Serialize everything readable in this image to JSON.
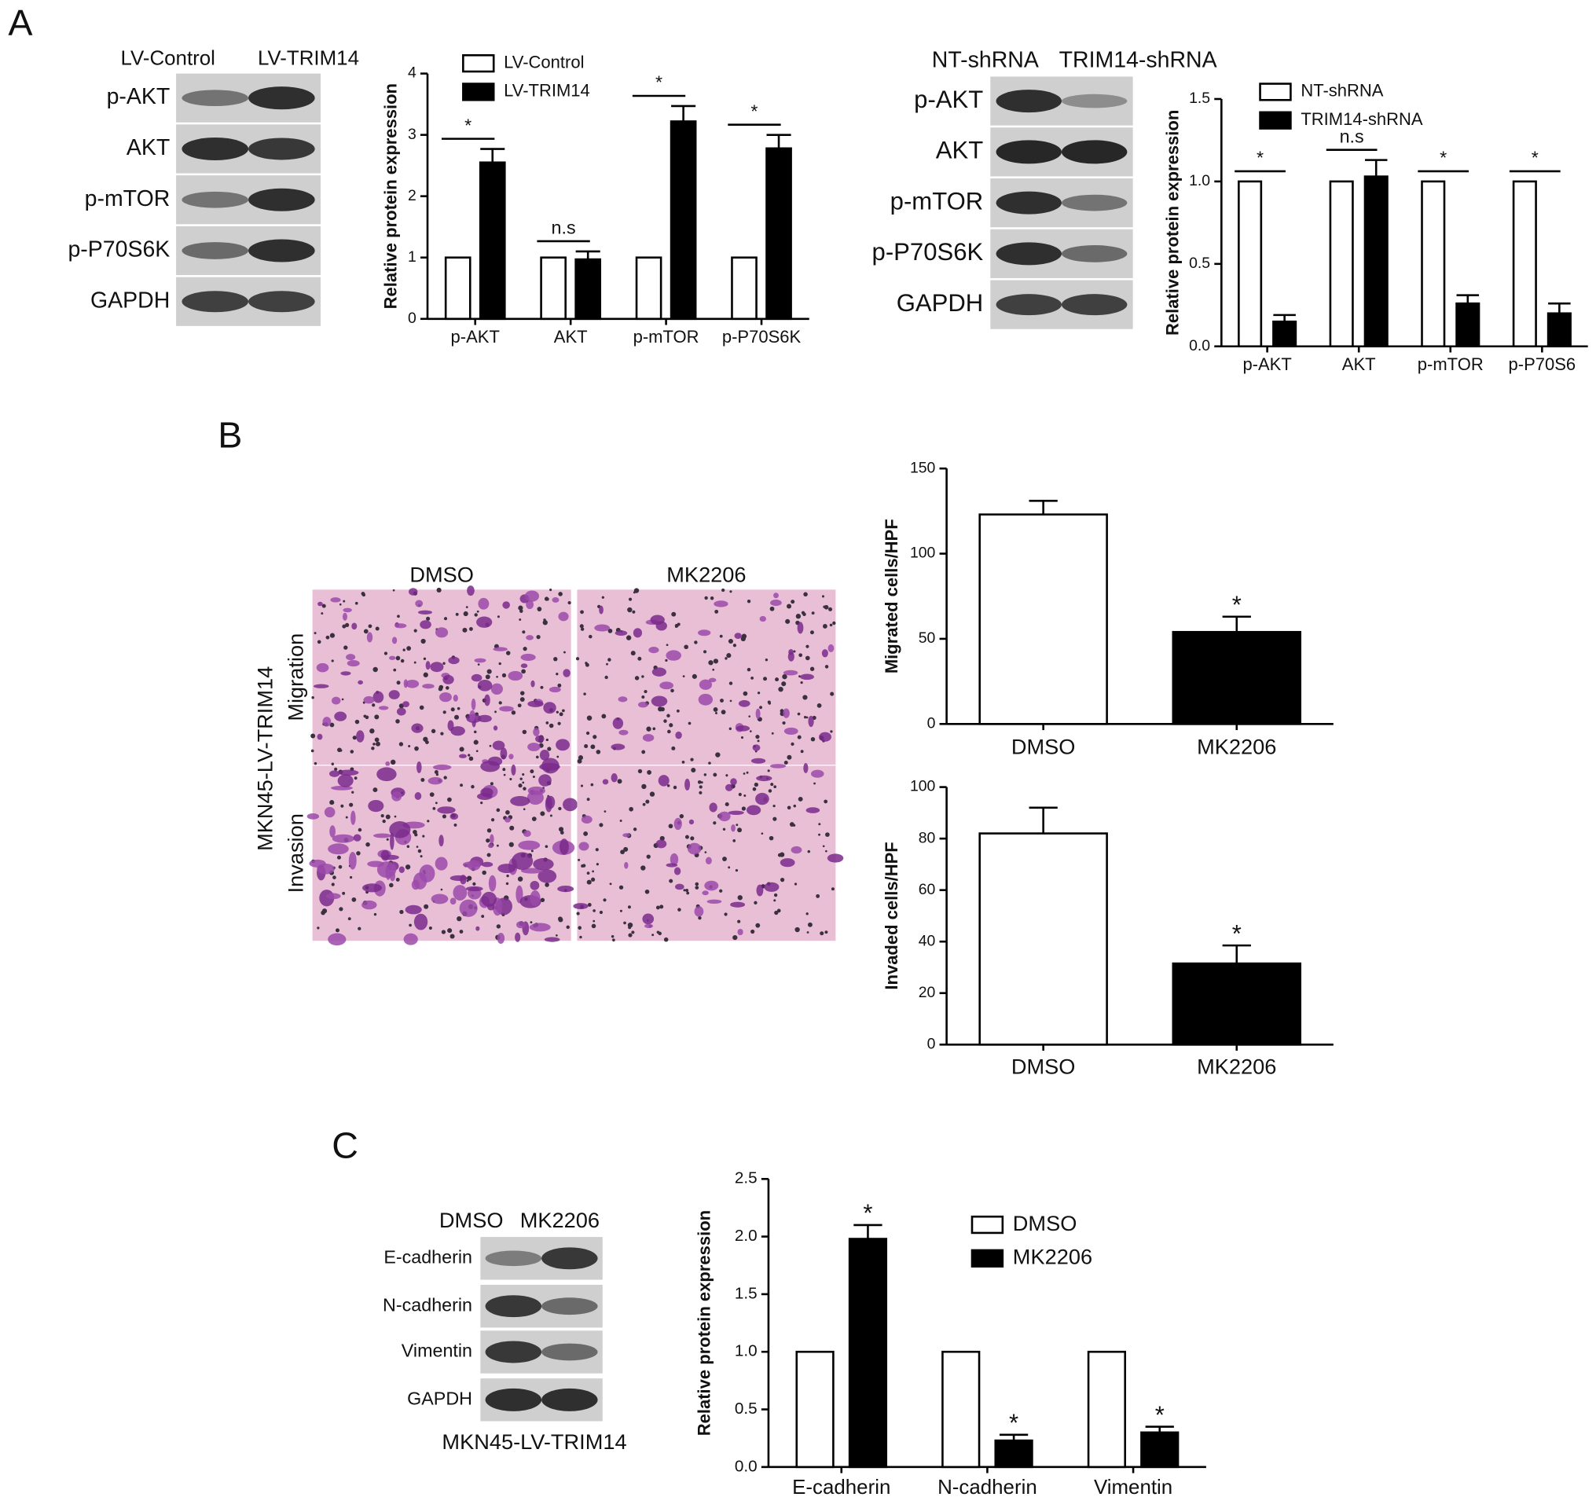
{
  "panels": [
    "A",
    "B",
    "C"
  ],
  "blots": [
    {
      "columns": [
        "LV-Control",
        "LV-TRIM14"
      ],
      "rows": [
        "p-AKT",
        "AKT",
        "p-mTOR",
        "p-P70S6K",
        "GAPDH"
      ]
    },
    {
      "columns": [
        "NT-shRNA",
        "TRIM14-shRNA"
      ],
      "rows": [
        "p-AKT",
        "AKT",
        "p-mTOR",
        "p-P70S6K",
        "GAPDH"
      ]
    },
    {
      "columns": [
        "DMSO",
        "MK2206"
      ],
      "rows": [
        "E-cadherin",
        "N-cadherin",
        "Vimentin",
        "GAPDH"
      ],
      "caption": "MKN45-LV-TRIM14"
    }
  ],
  "micrographs": {
    "columns": [
      "DMSO",
      "MK2206"
    ],
    "rows": [
      "Migration",
      "Invasion"
    ],
    "side_label": "MKN45-LV-TRIM14"
  },
  "chart_data": [
    {
      "type": "bar",
      "ylabel": "Relative protein expression",
      "categories": [
        "p-AKT",
        "AKT",
        "p-mTOR",
        "p-P70S6K"
      ],
      "series": [
        {
          "name": "LV-Control",
          "color": "#ffffff",
          "values": [
            1,
            1,
            1,
            1
          ]
        },
        {
          "name": "LV-TRIM14",
          "color": "#000000",
          "values": [
            2.55,
            0.97,
            3.22,
            2.78
          ],
          "errors": [
            0.22,
            0.13,
            0.25,
            0.22
          ]
        }
      ],
      "annotations": [
        "*",
        "n.s",
        "*",
        "*"
      ],
      "annotation_lines": true,
      "ylim": [
        0,
        4
      ],
      "yticks": [
        0,
        1,
        2,
        3,
        4
      ]
    },
    {
      "type": "bar",
      "ylabel": "Relative protein expression",
      "categories": [
        "p-AKT",
        "AKT",
        "p-mTOR",
        "p-P70S6"
      ],
      "series": [
        {
          "name": "NT-shRNA",
          "color": "#ffffff",
          "values": [
            1,
            1,
            1,
            1
          ]
        },
        {
          "name": "TRIM14-shRNA",
          "color": "#000000",
          "values": [
            0.15,
            1.03,
            0.26,
            0.2
          ],
          "errors": [
            0.04,
            0.1,
            0.05,
            0.06
          ]
        }
      ],
      "annotations": [
        "*",
        "n.s",
        "*",
        "*"
      ],
      "annotation_lines": true,
      "ylim": [
        0,
        1.5
      ],
      "yticks": [
        {
          "value": 0,
          "label": "0.0"
        },
        0.5,
        {
          "value": 1,
          "label": "1.0"
        },
        1.5
      ]
    },
    {
      "type": "bar",
      "ylabel": "Migrated cells/HPF",
      "categories": [
        "DMSO",
        "MK2206"
      ],
      "values": [
        123,
        54
      ],
      "errors": [
        8,
        9
      ],
      "colors": [
        "#ffffff",
        "#000000"
      ],
      "annotations": [
        null,
        "*"
      ],
      "ylim": [
        0,
        150
      ],
      "yticks": [
        0,
        50,
        100,
        150
      ]
    },
    {
      "type": "bar",
      "ylabel": "Invaded cells/HPF",
      "categories": [
        "DMSO",
        "MK2206"
      ],
      "values": [
        82,
        31.5
      ],
      "errors": [
        10,
        7
      ],
      "colors": [
        "#ffffff",
        "#000000"
      ],
      "annotations": [
        null,
        "*"
      ],
      "ylim": [
        0,
        100
      ],
      "yticks": [
        0,
        20,
        40,
        60,
        80,
        100
      ]
    },
    {
      "type": "bar",
      "ylabel": "Relative protein expression",
      "categories": [
        "E-cadherin",
        "N-cadherin",
        "Vimentin"
      ],
      "series": [
        {
          "name": "DMSO",
          "color": "#ffffff",
          "values": [
            1,
            1,
            1
          ]
        },
        {
          "name": "MK2206",
          "color": "#000000",
          "values": [
            1.98,
            0.23,
            0.3
          ],
          "errors": [
            0.12,
            0.05,
            0.05
          ]
        }
      ],
      "annotations": [
        "*",
        "*",
        "*"
      ],
      "annotation_lines": false,
      "ylim": [
        0,
        2.5
      ],
      "yticks": [
        {
          "value": 0,
          "label": "0.0"
        },
        0.5,
        {
          "value": 1,
          "label": "1.0"
        },
        1.5,
        {
          "value": 2,
          "label": "2.0"
        },
        2.5
      ]
    }
  ]
}
